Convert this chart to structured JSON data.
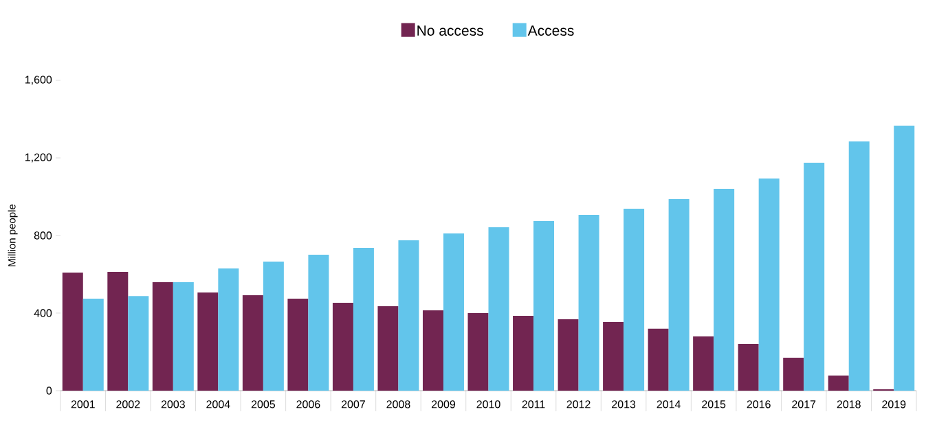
{
  "chart_data": {
    "type": "bar",
    "ylabel": "Million people",
    "categories": [
      "2001",
      "2002",
      "2003",
      "2004",
      "2005",
      "2006",
      "2007",
      "2008",
      "2009",
      "2010",
      "2011",
      "2012",
      "2013",
      "2014",
      "2015",
      "2016",
      "2017",
      "2018",
      "2019"
    ],
    "series": [
      {
        "name": "No access",
        "color": "#722551",
        "values": [
          609,
          612,
          559,
          506,
          492,
          474,
          453,
          435,
          414,
          400,
          386,
          368,
          354,
          319,
          280,
          241,
          170,
          78,
          7
        ]
      },
      {
        "name": "Access",
        "color": "#62c5eb",
        "values": [
          474,
          488,
          559,
          630,
          665,
          701,
          736,
          775,
          811,
          842,
          874,
          906,
          938,
          988,
          1041,
          1094,
          1175,
          1285,
          1366
        ]
      }
    ],
    "ylim": [
      0,
      1600
    ],
    "yticks": [
      0,
      400,
      800,
      {
        "value": 1200,
        "label": "1,200"
      },
      {
        "value": 1600,
        "label": "1,600"
      }
    ],
    "legend": "top"
  }
}
